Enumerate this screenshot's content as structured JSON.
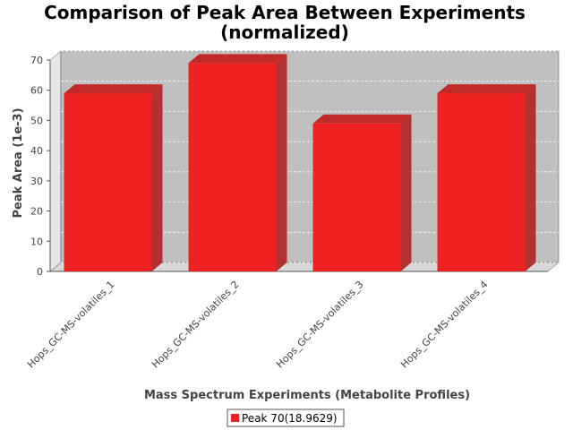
{
  "chart_data": {
    "type": "bar",
    "title": "Comparison of Peak Area Between Experiments",
    "subtitle": "(normalized)",
    "xlabel": "Mass Spectrum Experiments (Metabolite Profiles)",
    "ylabel": "Peak Area (1e-3)",
    "ylim": [
      0,
      70
    ],
    "yticks": [
      0,
      10,
      20,
      30,
      40,
      50,
      60,
      70
    ],
    "categories": [
      "Hops_GC-MS-volatiles_1",
      "Hops_GC-MS-volatiles_2",
      "Hops_GC-MS-volatiles_3",
      "Hops_GC-MS-volatiles_4"
    ],
    "series": [
      {
        "name": "Peak 70(18.9629)",
        "values": [
          59,
          69,
          49,
          59
        ],
        "color": "#ee2222"
      }
    ],
    "grid": true,
    "legend": "bottom",
    "background": "#c0c0c0"
  }
}
